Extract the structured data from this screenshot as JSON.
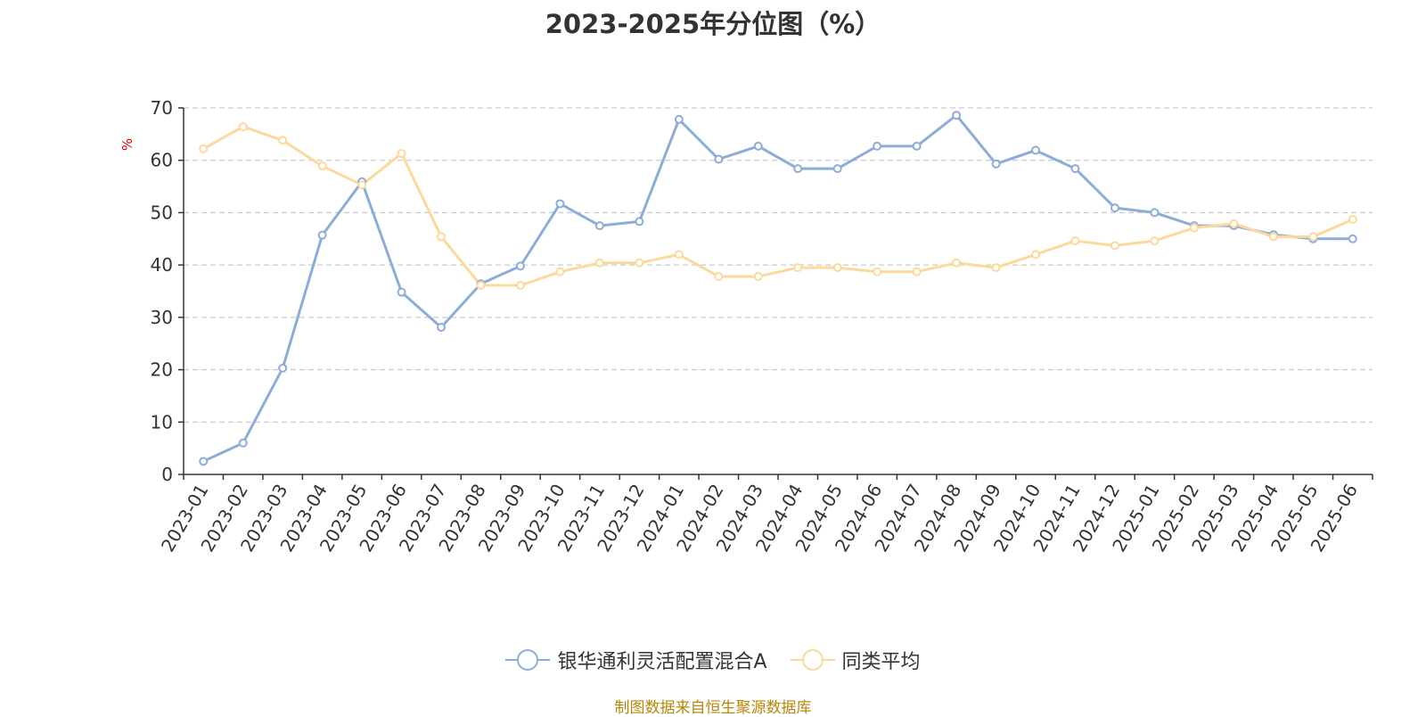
{
  "chart_data": {
    "type": "line",
    "title": "2023-2025年分位图（%）",
    "ylabel": "%",
    "xlabel": "",
    "ylim": [
      0,
      70
    ],
    "y_ticks": [
      0,
      10,
      20,
      30,
      40,
      50,
      60,
      70
    ],
    "grid": true,
    "legend_position": "bottom",
    "categories": [
      "2023-01",
      "2023-02",
      "2023-03",
      "2023-04",
      "2023-05",
      "2023-06",
      "2023-07",
      "2023-08",
      "2023-09",
      "2023-10",
      "2023-11",
      "2023-12",
      "2024-01",
      "2024-02",
      "2024-03",
      "2024-04",
      "2024-05",
      "2024-06",
      "2024-07",
      "2024-08",
      "2024-09",
      "2024-10",
      "2024-11",
      "2024-12",
      "2025-01",
      "2025-02",
      "2025-03",
      "2025-04",
      "2025-05",
      "2025-06"
    ],
    "series": [
      {
        "name": "银华通利灵活配置混合A",
        "color": "#8eacd8",
        "values": [
          2.5,
          6.0,
          20.3,
          45.7,
          55.9,
          34.8,
          28.1,
          36.4,
          39.8,
          51.7,
          47.5,
          48.3,
          67.8,
          60.2,
          62.7,
          58.4,
          58.4,
          62.7,
          62.7,
          68.6,
          59.3,
          61.9,
          58.4,
          50.9,
          50.0,
          47.5,
          47.5,
          45.8,
          45.0,
          45.0
        ]
      },
      {
        "name": "同类平均",
        "color": "#fcd99a",
        "values": [
          62.2,
          66.4,
          63.8,
          58.9,
          55.3,
          61.3,
          45.4,
          36.1,
          36.1,
          38.7,
          40.4,
          40.4,
          42.0,
          37.8,
          37.8,
          39.5,
          39.5,
          38.7,
          38.7,
          40.4,
          39.5,
          42.0,
          44.6,
          43.7,
          44.6,
          47.1,
          47.9,
          45.4,
          45.4,
          48.7
        ]
      }
    ]
  },
  "source_note": "制图数据来自恒生聚源数据库"
}
